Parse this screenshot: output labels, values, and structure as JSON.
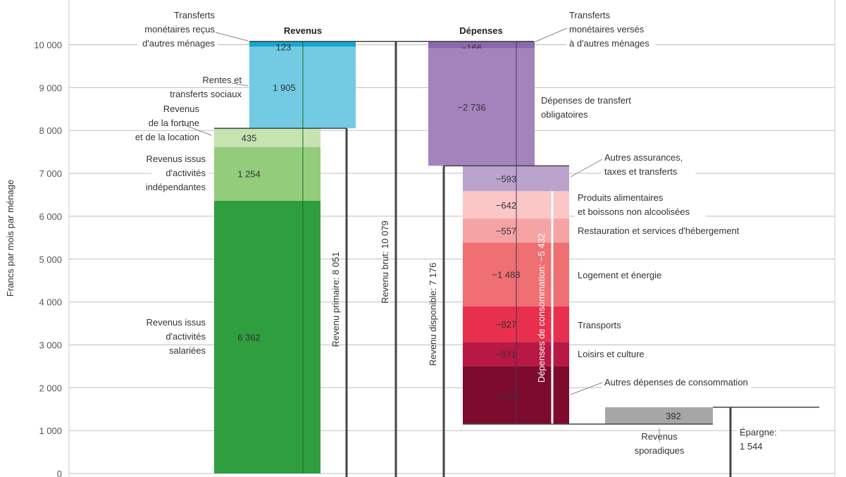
{
  "chart_data": {
    "type": "bar",
    "ylabel": "Francs par mois par ménage",
    "ylim": [
      0,
      10000
    ],
    "yticks": [
      0,
      1000,
      2000,
      3000,
      4000,
      5000,
      6000,
      7000,
      8000,
      9000,
      10000
    ],
    "ytick_labels": [
      "0",
      "1 000",
      "2 000",
      "3 000",
      "4 000",
      "5 000",
      "6 000",
      "7 000",
      "8 000",
      "9 000",
      "10 000"
    ],
    "grid": true,
    "columns": {
      "revenus": "Revenus",
      "depenses": "Dépenses"
    },
    "revenus": [
      {
        "name": "Revenus issus d'activités salariées",
        "label_lines": [
          "Revenus issus",
          "d'activités",
          "salariées"
        ],
        "value": 6362,
        "display": "6 362",
        "color": "#2f9e3f"
      },
      {
        "name": "Revenus issus d'activités indépendantes",
        "label_lines": [
          "Revenus issus",
          "d'activités",
          "indépendantes"
        ],
        "value": 1254,
        "display": "1 254",
        "color": "#93cd7c"
      },
      {
        "name": "Revenus de la fortune et de la location",
        "label_lines": [
          "Revenus",
          "de la fortune",
          "et de la location"
        ],
        "value": 435,
        "display": "435",
        "color": "#c5e4b1"
      },
      {
        "name": "Rentes et transferts sociaux",
        "label_lines": [
          "Rentes et",
          "transferts sociaux"
        ],
        "value": 1905,
        "display": "1 905",
        "color": "#72cae3"
      },
      {
        "name": "Transferts monétaires reçus d'autres ménages",
        "label_lines": [
          "Transferts",
          "monétaires reçus",
          "d'autres ménages"
        ],
        "value": 123,
        "display": "123",
        "color": "#16a6d0"
      }
    ],
    "depenses": [
      {
        "name": "Transferts monétaires versés à d'autres ménages",
        "label_lines": [
          "Transferts",
          "monétaires versés",
          "à d'autres ménages"
        ],
        "value": -166,
        "display": "−166",
        "color": "#8b67ad"
      },
      {
        "name": "Dépenses de transfert obligatoires",
        "label_lines": [
          "Dépenses de transfert",
          "obligatoires"
        ],
        "value": -2736,
        "display": "−2 736",
        "color": "#a483bd"
      },
      {
        "name": "Autres assurances, taxes et transferts",
        "label_lines": [
          "Autres assurances,",
          "taxes et transferts"
        ],
        "value": -593,
        "display": "−593",
        "color": "#bba3ce"
      },
      {
        "name": "Produits alimentaires et boissons non alcoolisées",
        "label_lines": [
          "Produits alimentaires",
          "et boissons non alcoolisées"
        ],
        "value": -642,
        "display": "−642",
        "color": "#fac7c6"
      },
      {
        "name": "Restauration et services d'hébergement",
        "label_lines": [
          "Restauration et services d'hébergement"
        ],
        "value": -557,
        "display": "−557",
        "color": "#f5a3a3"
      },
      {
        "name": "Logement et énergie",
        "label_lines": [
          "Logement et énergie"
        ],
        "value": -1488,
        "display": "−1 488",
        "color": "#ef6f72"
      },
      {
        "name": "Transports",
        "label_lines": [
          "Transports"
        ],
        "value": -827,
        "display": "−827",
        "color": "#e8304e"
      },
      {
        "name": "Loisirs et culture",
        "label_lines": [
          "Loisirs et culture"
        ],
        "value": -571,
        "display": "−571",
        "color": "#b81844"
      },
      {
        "name": "Autres dépenses de consommation",
        "label_lines": [
          "Autres dépenses de consommation"
        ],
        "value": -1347,
        "display": "−1 347",
        "color": "#7d0b2d"
      }
    ],
    "sporadic": {
      "name": "Revenus sporadiques",
      "label_lines": [
        "Revenus",
        "sporadiques"
      ],
      "value": 392,
      "display": "392",
      "color": "#a6a6a6"
    },
    "totals": [
      {
        "name": "Revenu primaire",
        "label": "Revenu primaire: 8 051",
        "value": 8051
      },
      {
        "name": "Revenu brut",
        "label": "Revenu brut: 10 079",
        "value": 10079
      },
      {
        "name": "Revenu disponible",
        "label": "Revenu disponible: 7 176",
        "value": 7176
      },
      {
        "name": "Dépenses de consommation",
        "label": "Dépenses de consommation: −5 432",
        "value": -5432
      },
      {
        "name": "Épargne",
        "label_lines": [
          "Épargne:",
          "1 544"
        ],
        "value": 1544
      }
    ]
  }
}
